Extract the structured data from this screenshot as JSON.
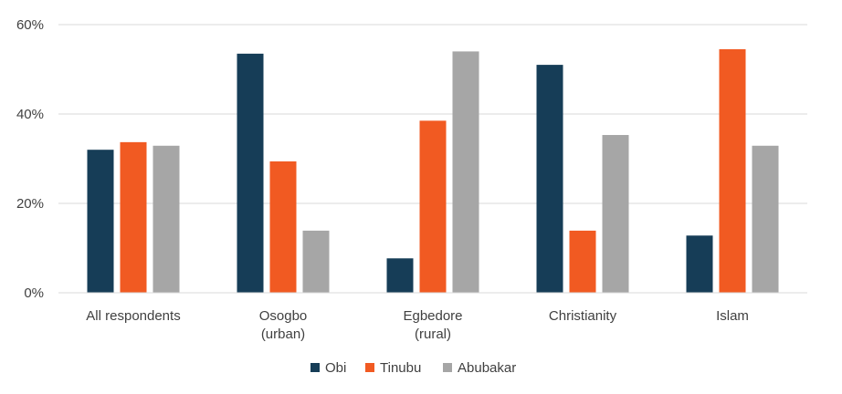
{
  "chart_data": {
    "type": "bar",
    "title": "",
    "xlabel": "",
    "ylabel": "",
    "ylim": [
      0,
      60
    ],
    "yticks": [
      "0%",
      "20%",
      "40%",
      "60%"
    ],
    "yticks_values": [
      0,
      20,
      40,
      60
    ],
    "grid": true,
    "legend_position": "bottom",
    "categories": [
      [
        "All respondents"
      ],
      [
        "Osogbo",
        "(urban)"
      ],
      [
        "Egbedore",
        "(rural)"
      ],
      [
        "Christianity"
      ],
      [
        "Islam"
      ]
    ],
    "series": [
      {
        "name": "Obi",
        "color": "#163d57",
        "values": [
          32,
          53.5,
          7.7,
          51,
          12.8
        ]
      },
      {
        "name": "Tinubu",
        "color": "#f15a22",
        "values": [
          33.7,
          29.4,
          38.5,
          13.9,
          54.5
        ]
      },
      {
        "name": "Abubakar",
        "color": "#a6a6a6",
        "values": [
          32.9,
          13.9,
          54,
          35.3,
          32.9
        ]
      }
    ]
  }
}
